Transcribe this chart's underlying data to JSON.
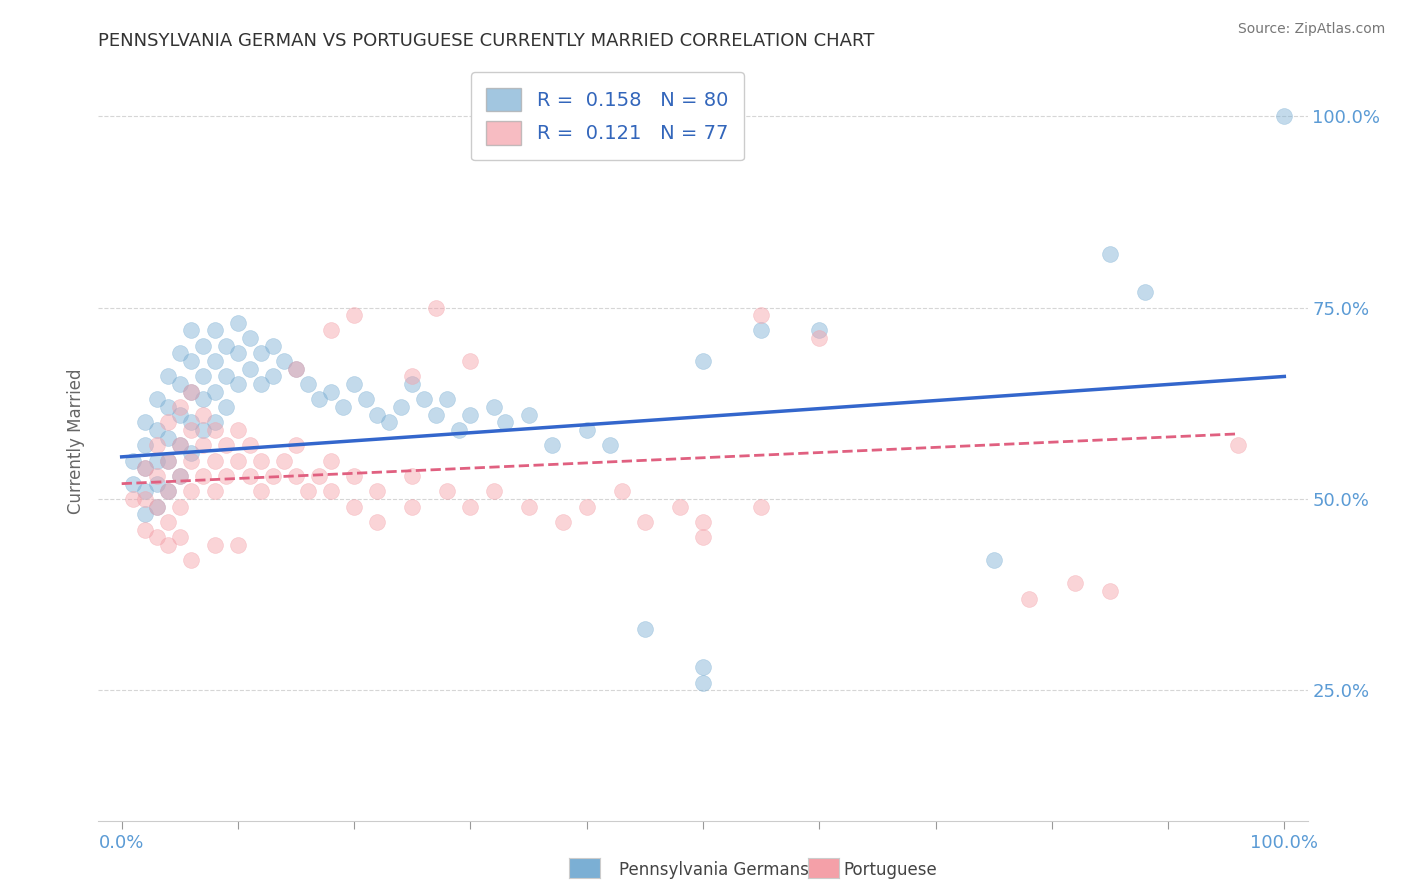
{
  "title": "PENNSYLVANIA GERMAN VS PORTUGUESE CURRENTLY MARRIED CORRELATION CHART",
  "source": "Source: ZipAtlas.com",
  "ylabel": "Currently Married",
  "y_tick_values": [
    0.25,
    0.5,
    0.75,
    1.0
  ],
  "y_tick_labels": [
    "25.0%",
    "50.0%",
    "75.0%",
    "100.0%"
  ],
  "x_tick_values": [
    0.0,
    0.1,
    0.2,
    0.3,
    0.4,
    0.5,
    0.6,
    0.7,
    0.8,
    0.9,
    1.0
  ],
  "x_tick_labels": [
    "0.0%",
    "",
    "",
    "",
    "",
    "",
    "",
    "",
    "",
    "",
    "100.0%"
  ],
  "xlim": [
    -0.02,
    1.02
  ],
  "ylim": [
    0.08,
    1.07
  ],
  "legend_r1_val": "0.158",
  "legend_n1_val": "80",
  "legend_r2_val": "0.121",
  "legend_n2_val": "77",
  "blue_color": "#7BAFD4",
  "pink_color": "#F4A0A8",
  "trend_blue_color": "#3366CC",
  "trend_pink_color": "#E06080",
  "axis_tick_color": "#5B9BD5",
  "grid_color": "#BBBBBB",
  "title_color": "#333333",
  "source_color": "#777777",
  "ylabel_color": "#666666",
  "background_color": "#FFFFFF",
  "blue_scatter": [
    [
      0.01,
      0.55
    ],
    [
      0.01,
      0.52
    ],
    [
      0.02,
      0.6
    ],
    [
      0.02,
      0.57
    ],
    [
      0.02,
      0.54
    ],
    [
      0.02,
      0.51
    ],
    [
      0.02,
      0.48
    ],
    [
      0.03,
      0.63
    ],
    [
      0.03,
      0.59
    ],
    [
      0.03,
      0.55
    ],
    [
      0.03,
      0.52
    ],
    [
      0.03,
      0.49
    ],
    [
      0.04,
      0.66
    ],
    [
      0.04,
      0.62
    ],
    [
      0.04,
      0.58
    ],
    [
      0.04,
      0.55
    ],
    [
      0.04,
      0.51
    ],
    [
      0.05,
      0.69
    ],
    [
      0.05,
      0.65
    ],
    [
      0.05,
      0.61
    ],
    [
      0.05,
      0.57
    ],
    [
      0.05,
      0.53
    ],
    [
      0.06,
      0.72
    ],
    [
      0.06,
      0.68
    ],
    [
      0.06,
      0.64
    ],
    [
      0.06,
      0.6
    ],
    [
      0.06,
      0.56
    ],
    [
      0.07,
      0.7
    ],
    [
      0.07,
      0.66
    ],
    [
      0.07,
      0.63
    ],
    [
      0.07,
      0.59
    ],
    [
      0.08,
      0.72
    ],
    [
      0.08,
      0.68
    ],
    [
      0.08,
      0.64
    ],
    [
      0.08,
      0.6
    ],
    [
      0.09,
      0.7
    ],
    [
      0.09,
      0.66
    ],
    [
      0.09,
      0.62
    ],
    [
      0.1,
      0.73
    ],
    [
      0.1,
      0.69
    ],
    [
      0.1,
      0.65
    ],
    [
      0.11,
      0.71
    ],
    [
      0.11,
      0.67
    ],
    [
      0.12,
      0.69
    ],
    [
      0.12,
      0.65
    ],
    [
      0.13,
      0.7
    ],
    [
      0.13,
      0.66
    ],
    [
      0.14,
      0.68
    ],
    [
      0.15,
      0.67
    ],
    [
      0.16,
      0.65
    ],
    [
      0.17,
      0.63
    ],
    [
      0.18,
      0.64
    ],
    [
      0.19,
      0.62
    ],
    [
      0.2,
      0.65
    ],
    [
      0.21,
      0.63
    ],
    [
      0.22,
      0.61
    ],
    [
      0.23,
      0.6
    ],
    [
      0.24,
      0.62
    ],
    [
      0.25,
      0.65
    ],
    [
      0.26,
      0.63
    ],
    [
      0.27,
      0.61
    ],
    [
      0.28,
      0.63
    ],
    [
      0.29,
      0.59
    ],
    [
      0.3,
      0.61
    ],
    [
      0.32,
      0.62
    ],
    [
      0.33,
      0.6
    ],
    [
      0.35,
      0.61
    ],
    [
      0.37,
      0.57
    ],
    [
      0.4,
      0.59
    ],
    [
      0.42,
      0.57
    ],
    [
      0.45,
      0.33
    ],
    [
      0.5,
      0.68
    ],
    [
      0.5,
      0.28
    ],
    [
      0.5,
      0.26
    ],
    [
      0.55,
      0.72
    ],
    [
      0.6,
      0.72
    ],
    [
      0.75,
      0.42
    ],
    [
      0.85,
      0.82
    ],
    [
      0.88,
      0.77
    ],
    [
      1.0,
      1.0
    ]
  ],
  "pink_scatter": [
    [
      0.01,
      0.5
    ],
    [
      0.02,
      0.54
    ],
    [
      0.02,
      0.5
    ],
    [
      0.02,
      0.46
    ],
    [
      0.03,
      0.57
    ],
    [
      0.03,
      0.53
    ],
    [
      0.03,
      0.49
    ],
    [
      0.03,
      0.45
    ],
    [
      0.04,
      0.6
    ],
    [
      0.04,
      0.55
    ],
    [
      0.04,
      0.51
    ],
    [
      0.04,
      0.47
    ],
    [
      0.05,
      0.62
    ],
    [
      0.05,
      0.57
    ],
    [
      0.05,
      0.53
    ],
    [
      0.05,
      0.49
    ],
    [
      0.05,
      0.45
    ],
    [
      0.06,
      0.64
    ],
    [
      0.06,
      0.59
    ],
    [
      0.06,
      0.55
    ],
    [
      0.06,
      0.51
    ],
    [
      0.07,
      0.61
    ],
    [
      0.07,
      0.57
    ],
    [
      0.07,
      0.53
    ],
    [
      0.08,
      0.59
    ],
    [
      0.08,
      0.55
    ],
    [
      0.08,
      0.51
    ],
    [
      0.09,
      0.57
    ],
    [
      0.09,
      0.53
    ],
    [
      0.1,
      0.59
    ],
    [
      0.1,
      0.55
    ],
    [
      0.11,
      0.57
    ],
    [
      0.11,
      0.53
    ],
    [
      0.12,
      0.55
    ],
    [
      0.12,
      0.51
    ],
    [
      0.13,
      0.53
    ],
    [
      0.14,
      0.55
    ],
    [
      0.15,
      0.57
    ],
    [
      0.15,
      0.53
    ],
    [
      0.16,
      0.51
    ],
    [
      0.17,
      0.53
    ],
    [
      0.18,
      0.55
    ],
    [
      0.18,
      0.51
    ],
    [
      0.2,
      0.53
    ],
    [
      0.2,
      0.49
    ],
    [
      0.22,
      0.51
    ],
    [
      0.22,
      0.47
    ],
    [
      0.25,
      0.53
    ],
    [
      0.25,
      0.49
    ],
    [
      0.28,
      0.51
    ],
    [
      0.3,
      0.49
    ],
    [
      0.32,
      0.51
    ],
    [
      0.35,
      0.49
    ],
    [
      0.38,
      0.47
    ],
    [
      0.4,
      0.49
    ],
    [
      0.43,
      0.51
    ],
    [
      0.45,
      0.47
    ],
    [
      0.48,
      0.49
    ],
    [
      0.5,
      0.47
    ],
    [
      0.55,
      0.49
    ],
    [
      0.2,
      0.74
    ],
    [
      0.27,
      0.75
    ],
    [
      0.55,
      0.74
    ],
    [
      0.6,
      0.71
    ],
    [
      0.15,
      0.67
    ],
    [
      0.18,
      0.72
    ],
    [
      0.25,
      0.66
    ],
    [
      0.3,
      0.68
    ],
    [
      0.1,
      0.44
    ],
    [
      0.08,
      0.44
    ],
    [
      0.06,
      0.42
    ],
    [
      0.04,
      0.44
    ],
    [
      0.78,
      0.37
    ],
    [
      0.82,
      0.39
    ],
    [
      0.85,
      0.38
    ],
    [
      0.96,
      0.57
    ],
    [
      0.5,
      0.45
    ]
  ]
}
